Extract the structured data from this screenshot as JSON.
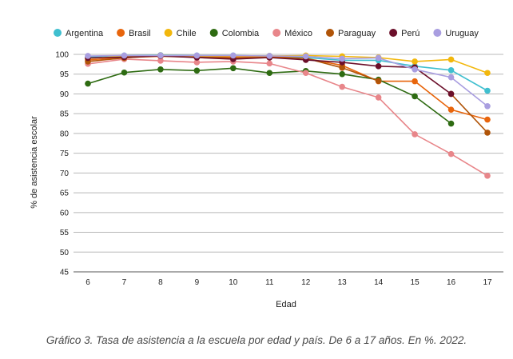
{
  "caption": "Gráfico 3. Tasa de asistencia a la escuela por edad y país. De 6 a 17 años. En %. 2022.",
  "chart_data": {
    "type": "line",
    "xlabel": "Edad",
    "ylabel": "% de asistencia escolar",
    "x": [
      6,
      7,
      8,
      9,
      10,
      11,
      12,
      13,
      14,
      15,
      16,
      17
    ],
    "ylim": [
      45,
      100
    ],
    "yticks": [
      45,
      50,
      55,
      60,
      65,
      70,
      75,
      80,
      85,
      90,
      95,
      100
    ],
    "grid": "horizontal",
    "legend_position": "top",
    "series": [
      {
        "name": "Argentina",
        "color": "#3fbfcf",
        "values": [
          99.4,
          99.7,
          99.8,
          99.7,
          99.7,
          99.6,
          99.2,
          98.5,
          98.5,
          97.0,
          96.0,
          90.8
        ]
      },
      {
        "name": "Brasil",
        "color": "#e8650c",
        "values": [
          98.6,
          99.2,
          99.5,
          99.3,
          99.4,
          99.4,
          99.0,
          97.2,
          93.2,
          93.2,
          86.0,
          83.5
        ]
      },
      {
        "name": "Chile",
        "color": "#f2b70c",
        "values": [
          99.0,
          99.5,
          99.7,
          99.6,
          99.6,
          99.6,
          99.7,
          99.5,
          99.2,
          98.2,
          98.7,
          95.3
        ]
      },
      {
        "name": "Colombia",
        "color": "#2e6b12",
        "values": [
          92.6,
          95.4,
          96.2,
          95.9,
          96.5,
          95.3,
          95.8,
          95.0,
          93.6,
          89.4,
          82.5,
          null
        ]
      },
      {
        "name": "México",
        "color": "#e8868a",
        "values": [
          97.6,
          98.8,
          98.4,
          98.0,
          98.2,
          97.7,
          95.3,
          91.8,
          89.1,
          79.8,
          74.8,
          69.3
        ]
      },
      {
        "name": "Paraguay",
        "color": "#b05408",
        "values": [
          98.2,
          99.1,
          99.7,
          99.3,
          99.1,
          99.2,
          99.0,
          96.6,
          93.3,
          null,
          90.0,
          80.2
        ]
      },
      {
        "name": "Perú",
        "color": "#6b0f2a",
        "values": [
          99.1,
          99.3,
          99.6,
          99.2,
          98.8,
          99.2,
          98.6,
          98.0,
          97.0,
          96.7,
          90.0,
          null
        ]
      },
      {
        "name": "Uruguay",
        "color": "#a99ee0",
        "values": [
          99.6,
          99.7,
          99.7,
          99.7,
          99.7,
          99.6,
          99.5,
          98.9,
          99.1,
          96.2,
          94.2,
          86.9
        ]
      }
    ]
  }
}
